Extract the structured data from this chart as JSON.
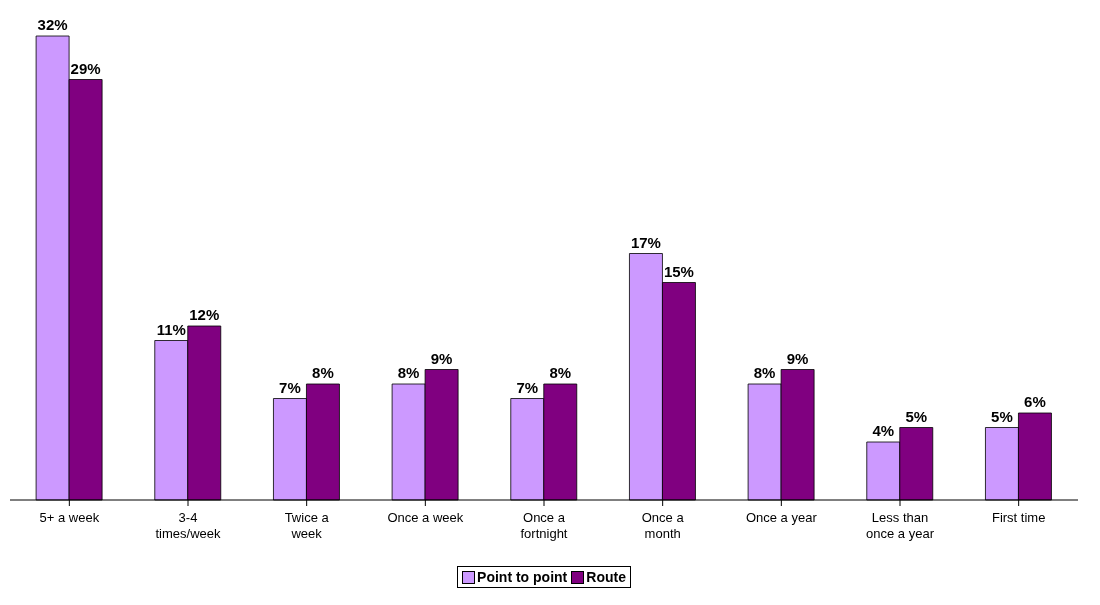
{
  "chart_data": {
    "type": "bar",
    "categories": [
      "5+ a week",
      "3-4 times/week",
      "Twice a week",
      "Once a week",
      "Once a fortnight",
      "Once a month",
      "Once a year",
      "Less than once a year",
      "First time"
    ],
    "series": [
      {
        "name": "Point to point",
        "color": "#cc99ff",
        "values": [
          32,
          11,
          7,
          8,
          7,
          17,
          8,
          4,
          5
        ],
        "value_labels": [
          "32%",
          "11%",
          "7%",
          "8%",
          "7%",
          "17%",
          "8%",
          "4%",
          "5%"
        ]
      },
      {
        "name": "Route",
        "color": "#800080",
        "values": [
          29,
          12,
          8,
          9,
          8,
          15,
          9,
          5,
          6
        ],
        "value_labels": [
          "29%",
          "12%",
          "8%",
          "9%",
          "8%",
          "15%",
          "9%",
          "5%",
          "6%"
        ]
      }
    ],
    "legend": "bottom",
    "grid": false
  }
}
